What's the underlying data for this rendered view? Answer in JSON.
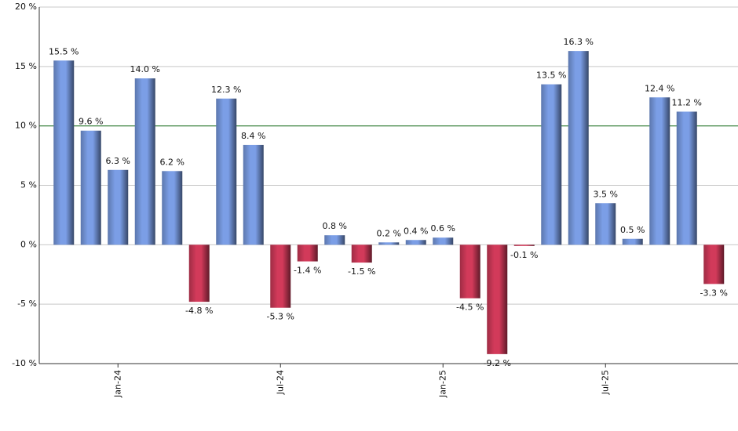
{
  "chart_data": {
    "type": "bar",
    "categories": [
      null,
      null,
      "Jan-24",
      null,
      null,
      null,
      null,
      null,
      "Jul-24",
      null,
      null,
      null,
      null,
      null,
      "Jan-25",
      null,
      null,
      null,
      null,
      null,
      "Jul-25",
      null,
      null,
      null,
      null
    ],
    "values": [
      15.5,
      9.6,
      6.3,
      14.0,
      6.2,
      -4.8,
      12.3,
      8.4,
      -5.3,
      -1.4,
      0.8,
      -1.5,
      0.2,
      0.4,
      0.6,
      -4.5,
      -9.2,
      -0.1,
      13.5,
      16.3,
      3.5,
      0.5,
      12.4,
      11.2,
      -3.3
    ],
    "value_labels": [
      "15.5 %",
      "9.6 %",
      "6.3 %",
      "14.0 %",
      "6.2 %",
      "-4.8 %",
      "12.3 %",
      "8.4 %",
      "-5.3 %",
      "-1.4 %",
      "0.8 %",
      "-1.5 %",
      "0.2 %",
      "0.4 %",
      "0.6 %",
      "-4.5 %",
      "-9.2 %",
      "-0.1 %",
      "13.5 %",
      "16.3 %",
      "3.5 %",
      "0.5 %",
      "12.4 %",
      "11.2 %",
      "-3.3 %"
    ],
    "colors": {
      "positive": "#7b9ee6",
      "negative": "#d23a5a"
    },
    "reference_line": {
      "value": 10,
      "color": "#2e7d32"
    },
    "ylim": [
      -10,
      20
    ],
    "yticks": [
      {
        "value": -10,
        "label": "-10 %"
      },
      {
        "value": -5,
        "label": "-5 %"
      },
      {
        "value": 0,
        "label": "0 %"
      },
      {
        "value": 5,
        "label": "5 %"
      },
      {
        "value": 10,
        "label": "10 %"
      },
      {
        "value": 15,
        "label": "15 %"
      },
      {
        "value": 20,
        "label": "20 %"
      }
    ],
    "grid": true
  }
}
